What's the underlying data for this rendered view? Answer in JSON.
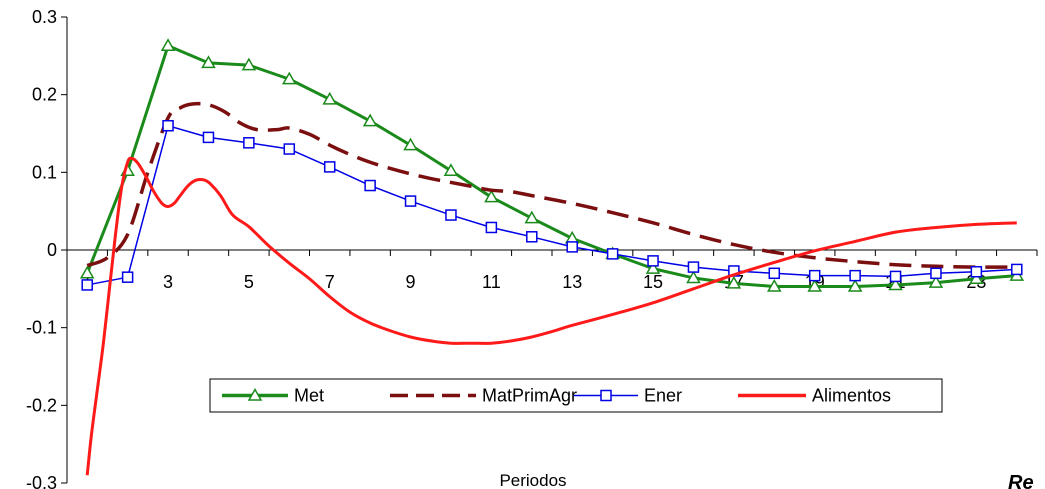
{
  "chart_data": {
    "type": "line",
    "title": "",
    "xlabel": "Periodos",
    "ylabel": "",
    "corner_text": "Re",
    "x": [
      1,
      2,
      3,
      4,
      5,
      6,
      7,
      8,
      9,
      10,
      11,
      12,
      13,
      14,
      15,
      16,
      17,
      18,
      19,
      20,
      21,
      22,
      23,
      24
    ],
    "xtick_labels": [
      "1",
      "3",
      "5",
      "7",
      "9",
      "11",
      "13",
      "15",
      "17",
      "19",
      "21",
      "23"
    ],
    "xtick_values": [
      1,
      3,
      5,
      7,
      9,
      11,
      13,
      15,
      17,
      19,
      21,
      23
    ],
    "ylim": [
      -0.3,
      0.3
    ],
    "yticks": [
      0.3,
      0.2,
      0.1,
      0,
      -0.1,
      -0.2,
      -0.3
    ],
    "ytick_labels": [
      "0.3",
      "0.2",
      "0.1",
      "0",
      "-0.1",
      "-0.2",
      "-0.3"
    ],
    "grid": false,
    "legend_position": "bottom-center",
    "series": [
      {
        "name": "Met",
        "color": "#1a8a1a",
        "marker": "triangle",
        "line_style": "solid",
        "values": [
          -0.03,
          0.102,
          0.263,
          0.241,
          0.238,
          0.22,
          0.194,
          0.166,
          0.135,
          0.102,
          0.068,
          0.041,
          0.015,
          -0.005,
          -0.024,
          -0.036,
          -0.043,
          -0.047,
          -0.047,
          -0.047,
          -0.045,
          -0.042,
          -0.037,
          -0.033
        ]
      },
      {
        "name": "MatPrimAgr",
        "color": "#7b0f0f",
        "marker": "none",
        "line_style": "dashed",
        "points": [
          [
            1,
            -0.02
          ],
          [
            1.5,
            -0.01
          ],
          [
            2,
            0.02
          ],
          [
            2.5,
            0.1
          ],
          [
            3,
            0.17
          ],
          [
            3.3,
            0.183
          ],
          [
            3.6,
            0.188
          ],
          [
            4,
            0.187
          ],
          [
            4.4,
            0.178
          ],
          [
            4.8,
            0.163
          ],
          [
            5.2,
            0.155
          ],
          [
            5.7,
            0.155
          ],
          [
            6,
            0.157
          ],
          [
            6.5,
            0.149
          ],
          [
            7,
            0.135
          ],
          [
            7.5,
            0.123
          ],
          [
            8,
            0.113
          ],
          [
            8.5,
            0.105
          ],
          [
            9,
            0.098
          ],
          [
            9.5,
            0.092
          ],
          [
            10,
            0.087
          ],
          [
            10.5,
            0.082
          ],
          [
            11,
            0.077
          ],
          [
            11.5,
            0.075
          ],
          [
            12,
            0.07
          ],
          [
            13,
            0.06
          ],
          [
            14,
            0.048
          ],
          [
            15,
            0.035
          ],
          [
            16,
            0.02
          ],
          [
            17,
            0.007
          ],
          [
            18,
            -0.003
          ],
          [
            19,
            -0.01
          ],
          [
            20,
            -0.015
          ],
          [
            21,
            -0.019
          ],
          [
            22,
            -0.021
          ],
          [
            23,
            -0.022
          ],
          [
            24,
            -0.022
          ]
        ]
      },
      {
        "name": "Ener",
        "color": "#0000e6",
        "marker": "square",
        "line_style": "solid",
        "values": [
          -0.045,
          -0.035,
          0.16,
          0.145,
          0.138,
          0.13,
          0.107,
          0.083,
          0.063,
          0.045,
          0.029,
          0.017,
          0.004,
          -0.005,
          -0.014,
          -0.022,
          -0.027,
          -0.03,
          -0.033,
          -0.033,
          -0.034,
          -0.03,
          -0.028,
          -0.025
        ]
      },
      {
        "name": "Alimentos",
        "color": "#ff1a1a",
        "marker": "none",
        "line_style": "solid",
        "points": [
          [
            1,
            -0.29
          ],
          [
            1.1,
            -0.24
          ],
          [
            1.25,
            -0.18
          ],
          [
            1.4,
            -0.12
          ],
          [
            1.55,
            -0.05
          ],
          [
            1.7,
            0.02
          ],
          [
            1.85,
            0.08
          ],
          [
            2,
            0.113
          ],
          [
            2.1,
            0.118
          ],
          [
            2.25,
            0.112
          ],
          [
            2.45,
            0.095
          ],
          [
            2.65,
            0.075
          ],
          [
            2.85,
            0.06
          ],
          [
            3,
            0.056
          ],
          [
            3.15,
            0.06
          ],
          [
            3.3,
            0.07
          ],
          [
            3.5,
            0.083
          ],
          [
            3.7,
            0.09
          ],
          [
            3.9,
            0.09
          ],
          [
            4.05,
            0.085
          ],
          [
            4.3,
            0.07
          ],
          [
            4.6,
            0.045
          ],
          [
            5,
            0.03
          ],
          [
            5.5,
            0.005
          ],
          [
            6,
            -0.017
          ],
          [
            6.5,
            -0.037
          ],
          [
            7,
            -0.06
          ],
          [
            7.5,
            -0.08
          ],
          [
            8,
            -0.094
          ],
          [
            8.5,
            -0.104
          ],
          [
            9,
            -0.112
          ],
          [
            9.5,
            -0.117
          ],
          [
            10,
            -0.12
          ],
          [
            10.5,
            -0.12
          ],
          [
            11,
            -0.12
          ],
          [
            11.5,
            -0.117
          ],
          [
            12,
            -0.112
          ],
          [
            12.5,
            -0.105
          ],
          [
            13,
            -0.097
          ],
          [
            14,
            -0.083
          ],
          [
            15,
            -0.068
          ],
          [
            16,
            -0.05
          ],
          [
            17,
            -0.032
          ],
          [
            18,
            -0.016
          ],
          [
            19,
            -0.001
          ],
          [
            20,
            0.011
          ],
          [
            21,
            0.023
          ],
          [
            22,
            0.029
          ],
          [
            23,
            0.033
          ],
          [
            24,
            0.035
          ]
        ]
      }
    ]
  }
}
